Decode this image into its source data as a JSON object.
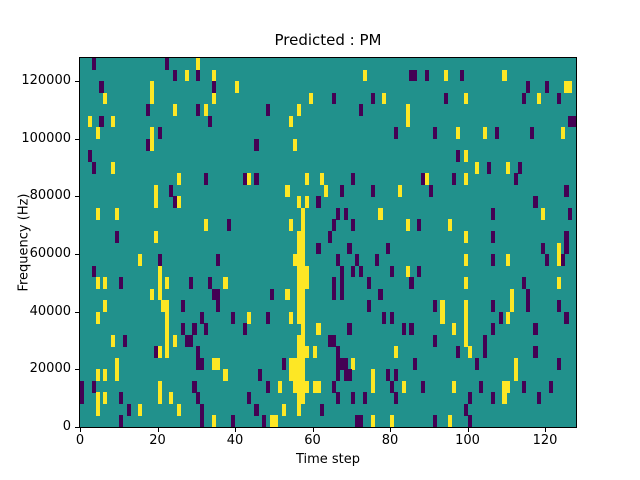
{
  "figure": {
    "title": "Predicted : PM",
    "xlabel": "Time step",
    "ylabel": "Frequency (Hz)"
  },
  "chart_data": {
    "type": "heatmap",
    "title": "Predicted : PM",
    "xlabel": "Time step",
    "ylabel": "Frequency (Hz)",
    "grid_cols": 128,
    "grid_rows": 32,
    "xlim": [
      0,
      128
    ],
    "ylim": [
      0,
      128000
    ],
    "x_ticks": [
      0,
      20,
      40,
      60,
      80,
      100,
      120
    ],
    "y_ticks": [
      0,
      20000,
      40000,
      60000,
      80000,
      100000,
      120000
    ],
    "colors": {
      "background": "#21918c",
      "high": "#fde725",
      "low": "#440154"
    },
    "cell_encoding": "each cell is [time_step, row_from_top]; row 0 = 124000-128000 Hz band, row 31 = 0-4000 Hz band",
    "cells_high": [
      [
        30,
        0
      ],
      [
        27,
        1
      ],
      [
        34,
        1
      ],
      [
        73,
        1
      ],
      [
        94,
        1
      ],
      [
        109,
        1
      ],
      [
        18,
        2
      ],
      [
        40,
        2
      ],
      [
        125,
        2
      ],
      [
        126,
        2
      ],
      [
        6,
        3
      ],
      [
        18,
        3
      ],
      [
        34,
        3
      ],
      [
        59,
        3
      ],
      [
        78,
        3
      ],
      [
        99,
        3
      ],
      [
        118,
        3
      ],
      [
        24,
        4
      ],
      [
        32,
        4
      ],
      [
        56,
        4
      ],
      [
        84,
        4
      ],
      [
        2,
        5
      ],
      [
        8,
        5
      ],
      [
        54,
        5
      ],
      [
        84,
        5
      ],
      [
        4,
        6
      ],
      [
        18,
        6
      ],
      [
        97,
        6
      ],
      [
        104,
        6
      ],
      [
        124,
        6
      ],
      [
        18,
        7
      ],
      [
        55,
        7
      ],
      [
        99,
        8
      ],
      [
        8,
        9
      ],
      [
        102,
        9
      ],
      [
        110,
        9
      ],
      [
        25,
        10
      ],
      [
        43,
        10
      ],
      [
        58,
        10
      ],
      [
        62,
        10
      ],
      [
        89,
        10
      ],
      [
        99,
        10
      ],
      [
        19,
        11
      ],
      [
        53,
        11
      ],
      [
        63,
        11
      ],
      [
        82,
        11
      ],
      [
        19,
        12
      ],
      [
        25,
        12
      ],
      [
        56,
        12
      ],
      [
        58,
        12
      ],
      [
        4,
        13
      ],
      [
        9,
        13
      ],
      [
        57,
        13
      ],
      [
        77,
        13
      ],
      [
        119,
        13
      ],
      [
        32,
        14
      ],
      [
        54,
        14
      ],
      [
        57,
        14
      ],
      [
        84,
        14
      ],
      [
        95,
        14
      ],
      [
        19,
        15
      ],
      [
        56,
        15
      ],
      [
        57,
        15
      ],
      [
        99,
        15
      ],
      [
        56,
        16
      ],
      [
        57,
        16
      ],
      [
        123,
        16
      ],
      [
        15,
        17
      ],
      [
        55,
        17
      ],
      [
        56,
        17
      ],
      [
        57,
        17
      ],
      [
        99,
        17
      ],
      [
        110,
        17
      ],
      [
        123,
        17
      ],
      [
        20,
        18
      ],
      [
        56,
        18
      ],
      [
        57,
        18
      ],
      [
        58,
        18
      ],
      [
        84,
        18
      ],
      [
        4,
        19
      ],
      [
        6,
        19
      ],
      [
        20,
        19
      ],
      [
        22,
        19
      ],
      [
        37,
        19
      ],
      [
        56,
        19
      ],
      [
        57,
        19
      ],
      [
        58,
        19
      ],
      [
        99,
        19
      ],
      [
        123,
        19
      ],
      [
        18,
        20
      ],
      [
        20,
        20
      ],
      [
        53,
        20
      ],
      [
        56,
        20
      ],
      [
        57,
        20
      ],
      [
        111,
        20
      ],
      [
        6,
        21
      ],
      [
        21,
        21
      ],
      [
        22,
        21
      ],
      [
        56,
        21
      ],
      [
        57,
        21
      ],
      [
        93,
        21
      ],
      [
        99,
        21
      ],
      [
        111,
        21
      ],
      [
        4,
        22
      ],
      [
        22,
        22
      ],
      [
        43,
        22
      ],
      [
        54,
        22
      ],
      [
        56,
        22
      ],
      [
        57,
        22
      ],
      [
        93,
        22
      ],
      [
        99,
        22
      ],
      [
        110,
        22
      ],
      [
        22,
        23
      ],
      [
        57,
        23
      ],
      [
        61,
        23
      ],
      [
        96,
        23
      ],
      [
        99,
        23
      ],
      [
        8,
        24
      ],
      [
        22,
        24
      ],
      [
        24,
        24
      ],
      [
        56,
        24
      ],
      [
        57,
        24
      ],
      [
        99,
        24
      ],
      [
        20,
        25
      ],
      [
        22,
        25
      ],
      [
        56,
        25
      ],
      [
        57,
        25
      ],
      [
        58,
        25
      ],
      [
        60,
        25
      ],
      [
        81,
        25
      ],
      [
        100,
        25
      ],
      [
        9,
        26
      ],
      [
        34,
        26
      ],
      [
        35,
        26
      ],
      [
        54,
        26
      ],
      [
        55,
        26
      ],
      [
        56,
        26
      ],
      [
        57,
        26
      ],
      [
        70,
        26
      ],
      [
        112,
        26
      ],
      [
        4,
        27
      ],
      [
        6,
        27
      ],
      [
        9,
        27
      ],
      [
        37,
        27
      ],
      [
        54,
        27
      ],
      [
        55,
        27
      ],
      [
        56,
        27
      ],
      [
        57,
        27
      ],
      [
        75,
        27
      ],
      [
        112,
        27
      ],
      [
        20,
        28
      ],
      [
        51,
        28
      ],
      [
        55,
        28
      ],
      [
        56,
        28
      ],
      [
        57,
        28
      ],
      [
        58,
        28
      ],
      [
        60,
        28
      ],
      [
        61,
        28
      ],
      [
        75,
        28
      ],
      [
        83,
        28
      ],
      [
        96,
        28
      ],
      [
        109,
        28
      ],
      [
        110,
        28
      ],
      [
        4,
        29
      ],
      [
        6,
        29
      ],
      [
        20,
        29
      ],
      [
        23,
        29
      ],
      [
        56,
        29
      ],
      [
        57,
        29
      ],
      [
        109,
        29
      ],
      [
        4,
        30
      ],
      [
        15,
        30
      ],
      [
        25,
        30
      ],
      [
        52,
        30
      ],
      [
        56,
        30
      ],
      [
        34,
        31
      ],
      [
        49,
        31
      ],
      [
        50,
        31
      ],
      [
        75,
        31
      ],
      [
        80,
        31
      ],
      [
        95,
        31
      ]
    ],
    "cells_low": [
      [
        3,
        0
      ],
      [
        22,
        0
      ],
      [
        24,
        1
      ],
      [
        30,
        1
      ],
      [
        85,
        1
      ],
      [
        86,
        1
      ],
      [
        89,
        1
      ],
      [
        98,
        1
      ],
      [
        5,
        2
      ],
      [
        34,
        2
      ],
      [
        115,
        2
      ],
      [
        120,
        2
      ],
      [
        65,
        3
      ],
      [
        75,
        3
      ],
      [
        94,
        3
      ],
      [
        114,
        3
      ],
      [
        123,
        3
      ],
      [
        17,
        4
      ],
      [
        30,
        4
      ],
      [
        48,
        4
      ],
      [
        72,
        4
      ],
      [
        5,
        5
      ],
      [
        33,
        5
      ],
      [
        126,
        5
      ],
      [
        127,
        5
      ],
      [
        20,
        6
      ],
      [
        81,
        6
      ],
      [
        91,
        6
      ],
      [
        107,
        6
      ],
      [
        116,
        6
      ],
      [
        17,
        7
      ],
      [
        45,
        7
      ],
      [
        2,
        8
      ],
      [
        97,
        8
      ],
      [
        3,
        9
      ],
      [
        105,
        9
      ],
      [
        113,
        9
      ],
      [
        32,
        10
      ],
      [
        42,
        10
      ],
      [
        45,
        10
      ],
      [
        70,
        10
      ],
      [
        88,
        10
      ],
      [
        96,
        10
      ],
      [
        112,
        10
      ],
      [
        23,
        11
      ],
      [
        67,
        11
      ],
      [
        75,
        11
      ],
      [
        90,
        11
      ],
      [
        125,
        11
      ],
      [
        24,
        12
      ],
      [
        61,
        12
      ],
      [
        117,
        12
      ],
      [
        66,
        13
      ],
      [
        68,
        13
      ],
      [
        106,
        13
      ],
      [
        126,
        13
      ],
      [
        38,
        14
      ],
      [
        65,
        14
      ],
      [
        70,
        14
      ],
      [
        87,
        14
      ],
      [
        9,
        15
      ],
      [
        64,
        15
      ],
      [
        106,
        15
      ],
      [
        125,
        15
      ],
      [
        61,
        16
      ],
      [
        69,
        16
      ],
      [
        79,
        16
      ],
      [
        119,
        16
      ],
      [
        125,
        16
      ],
      [
        20,
        17
      ],
      [
        35,
        17
      ],
      [
        66,
        17
      ],
      [
        71,
        17
      ],
      [
        76,
        17
      ],
      [
        106,
        17
      ],
      [
        120,
        17
      ],
      [
        124,
        17
      ],
      [
        3,
        18
      ],
      [
        67,
        18
      ],
      [
        70,
        18
      ],
      [
        72,
        18
      ],
      [
        80,
        18
      ],
      [
        87,
        18
      ],
      [
        10,
        19
      ],
      [
        28,
        19
      ],
      [
        33,
        19
      ],
      [
        65,
        19
      ],
      [
        67,
        19
      ],
      [
        74,
        19
      ],
      [
        85,
        19
      ],
      [
        114,
        19
      ],
      [
        34,
        20
      ],
      [
        35,
        20
      ],
      [
        49,
        20
      ],
      [
        65,
        20
      ],
      [
        67,
        20
      ],
      [
        77,
        20
      ],
      [
        115,
        20
      ],
      [
        26,
        21
      ],
      [
        35,
        21
      ],
      [
        74,
        21
      ],
      [
        91,
        21
      ],
      [
        106,
        21
      ],
      [
        115,
        21
      ],
      [
        123,
        21
      ],
      [
        31,
        22
      ],
      [
        39,
        22
      ],
      [
        48,
        22
      ],
      [
        78,
        22
      ],
      [
        80,
        22
      ],
      [
        108,
        22
      ],
      [
        125,
        22
      ],
      [
        26,
        23
      ],
      [
        29,
        23
      ],
      [
        32,
        23
      ],
      [
        42,
        23
      ],
      [
        69,
        23
      ],
      [
        83,
        23
      ],
      [
        85,
        23
      ],
      [
        106,
        23
      ],
      [
        117,
        23
      ],
      [
        11,
        24
      ],
      [
        27,
        24
      ],
      [
        28,
        24
      ],
      [
        64,
        24
      ],
      [
        65,
        24
      ],
      [
        91,
        24
      ],
      [
        104,
        24
      ],
      [
        19,
        25
      ],
      [
        30,
        25
      ],
      [
        66,
        25
      ],
      [
        97,
        25
      ],
      [
        104,
        25
      ],
      [
        117,
        25
      ],
      [
        30,
        26
      ],
      [
        31,
        26
      ],
      [
        52,
        26
      ],
      [
        66,
        26
      ],
      [
        67,
        26
      ],
      [
        68,
        26
      ],
      [
        86,
        26
      ],
      [
        102,
        26
      ],
      [
        123,
        26
      ],
      [
        46,
        27
      ],
      [
        66,
        27
      ],
      [
        68,
        27
      ],
      [
        69,
        27
      ],
      [
        79,
        27
      ],
      [
        81,
        27
      ],
      [
        0,
        28
      ],
      [
        3,
        28
      ],
      [
        29,
        28
      ],
      [
        48,
        28
      ],
      [
        65,
        28
      ],
      [
        80,
        28
      ],
      [
        88,
        28
      ],
      [
        103,
        28
      ],
      [
        114,
        28
      ],
      [
        121,
        28
      ],
      [
        0,
        29
      ],
      [
        10,
        29
      ],
      [
        30,
        29
      ],
      [
        43,
        29
      ],
      [
        66,
        29
      ],
      [
        70,
        29
      ],
      [
        73,
        29
      ],
      [
        81,
        29
      ],
      [
        100,
        29
      ],
      [
        106,
        29
      ],
      [
        118,
        29
      ],
      [
        12,
        30
      ],
      [
        31,
        30
      ],
      [
        45,
        30
      ],
      [
        62,
        30
      ],
      [
        99,
        30
      ],
      [
        10,
        31
      ],
      [
        31,
        31
      ],
      [
        39,
        31
      ],
      [
        47,
        31
      ],
      [
        71,
        31
      ],
      [
        72,
        31
      ],
      [
        91,
        31
      ],
      [
        100,
        31
      ]
    ]
  }
}
